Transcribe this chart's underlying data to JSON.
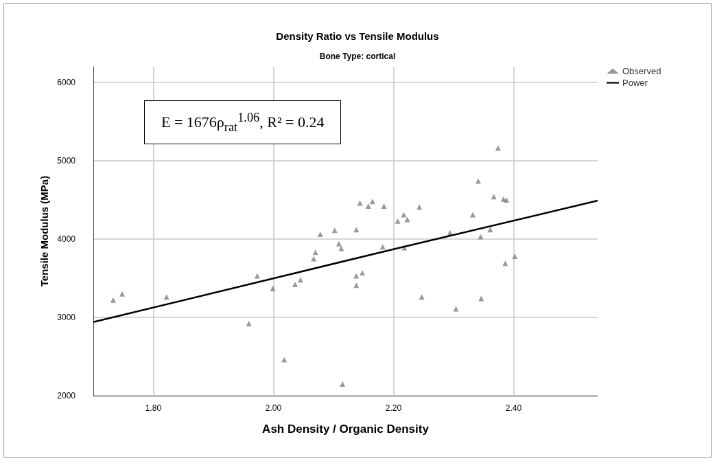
{
  "chart_data": {
    "type": "scatter",
    "title": "Density Ratio vs Tensile Modulus",
    "subtitle": "Bone Type: cortical",
    "xlabel": "Ash Density / Organic Density",
    "ylabel": "Tensile Modulus (MPa)",
    "annotations": [
      "E = 1676ρ$_{rat}$$^{1.06}$, R² = 0.24"
    ],
    "xlim": [
      1.7,
      2.54
    ],
    "xticks": [
      {
        "value": 1.8,
        "label": "1.80"
      },
      {
        "value": 2.0,
        "label": "2.00"
      },
      {
        "value": 2.2,
        "label": "2.20"
      },
      {
        "value": 2.4,
        "label": "2.40"
      }
    ],
    "ylim": [
      2000,
      6200
    ],
    "yticks": [
      2000,
      3000,
      4000,
      5000,
      6000
    ],
    "grid": true,
    "legend": "top right",
    "marker": "triangle",
    "series": [
      {
        "name": "Observed",
        "color": "#808080",
        "x": [
          1.733,
          1.748,
          1.822,
          1.959,
          1.973,
          1.999,
          2.018,
          2.036,
          2.045,
          2.067,
          2.07,
          2.078,
          2.102,
          2.109,
          2.113,
          2.115,
          2.138,
          2.138,
          2.138,
          2.144,
          2.148,
          2.158,
          2.165,
          2.182,
          2.184,
          2.207,
          2.217,
          2.218,
          2.223,
          2.243,
          2.247,
          2.294,
          2.304,
          2.332,
          2.341,
          2.345,
          2.346,
          2.361,
          2.367,
          2.374,
          2.383,
          2.388,
          2.386,
          2.402
        ],
        "values": [
          3220,
          3300,
          3260,
          2920,
          3530,
          3370,
          2460,
          3420,
          3480,
          3750,
          3830,
          4060,
          4110,
          3940,
          3880,
          2150,
          4120,
          3530,
          3410,
          4460,
          3570,
          4420,
          4480,
          3900,
          4420,
          4230,
          4310,
          3890,
          4250,
          4410,
          3260,
          4080,
          3110,
          4310,
          4740,
          4030,
          3240,
          4120,
          4540,
          5160,
          4510,
          4500,
          3690,
          3780
        ]
      },
      {
        "name": "Power",
        "type": "line",
        "color": "#000000",
        "marker": "none",
        "line_style": "solid",
        "x": [
          1.7,
          2.2,
          2.54
        ],
        "values": [
          2940,
          3870,
          4490
        ]
      }
    ]
  }
}
